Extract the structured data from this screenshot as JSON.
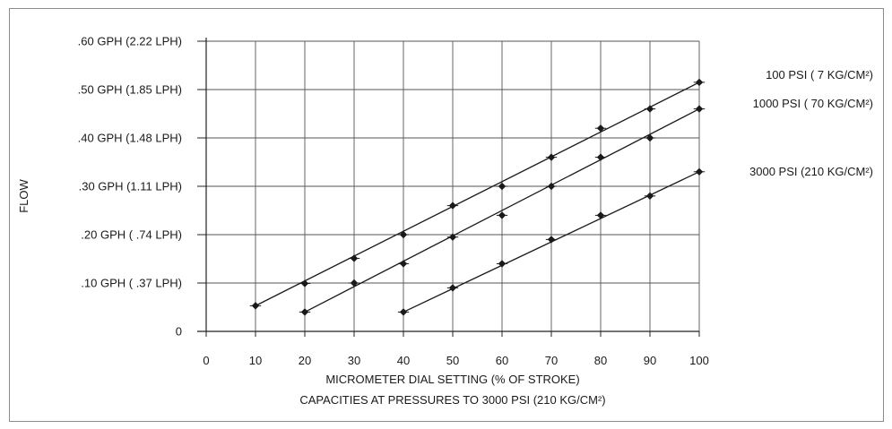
{
  "chart_data": {
    "type": "line",
    "ylabel": "FLOW",
    "xlabel": "MICROMETER DIAL SETTING (% OF STROKE)",
    "caption": "CAPACITIES AT PRESSURES TO 3000 PSI (210 KG/CM²)",
    "xlim": [
      0,
      100
    ],
    "ylim": [
      0,
      0.6
    ],
    "x_ticks": [
      0,
      10,
      20,
      30,
      40,
      50,
      60,
      70,
      80,
      90,
      100
    ],
    "x_tick_labels": [
      "0",
      "10",
      "20",
      "30",
      "40",
      "50",
      "60",
      "70",
      "80",
      "90",
      "100"
    ],
    "y_ticks": [
      0,
      0.1,
      0.2,
      0.3,
      0.4,
      0.5,
      0.6
    ],
    "y_tick_labels": [
      "0",
      ".10 GPH  ( .37 LPH)",
      ".20 GPH  ( .74 LPH)",
      ".30 GPH  (1.11 LPH)",
      ".40 GPH  (1.48 LPH)",
      ".50 GPH  (1.85 LPH)",
      ".60 GPH  (2.22 LPH)"
    ],
    "grid": true,
    "series": [
      {
        "name": "100 PSI  (   7 KG/CM²)",
        "x": [
          10,
          20,
          30,
          40,
          50,
          60,
          70,
          80,
          90,
          100
        ],
        "y": [
          0.053,
          0.099,
          0.151,
          0.2,
          0.26,
          0.3,
          0.36,
          0.42,
          0.46,
          0.515
        ],
        "line_start": [
          10,
          0.053
        ],
        "line_end": [
          100,
          0.515
        ]
      },
      {
        "name": "1000 PSI  ( 70 KG/CM²)",
        "x": [
          20,
          30,
          40,
          50,
          60,
          70,
          80,
          90,
          100
        ],
        "y": [
          0.04,
          0.1,
          0.14,
          0.195,
          0.24,
          0.3,
          0.36,
          0.4,
          0.46
        ],
        "line_start": [
          20,
          0.04
        ],
        "line_end": [
          100,
          0.46
        ]
      },
      {
        "name": "3000 PSI  (210 KG/CM²)",
        "x": [
          40,
          50,
          60,
          70,
          80,
          90,
          100
        ],
        "y": [
          0.04,
          0.09,
          0.14,
          0.19,
          0.24,
          0.28,
          0.33
        ],
        "line_start": [
          40,
          0.04
        ],
        "line_end": [
          100,
          0.33
        ]
      }
    ]
  }
}
